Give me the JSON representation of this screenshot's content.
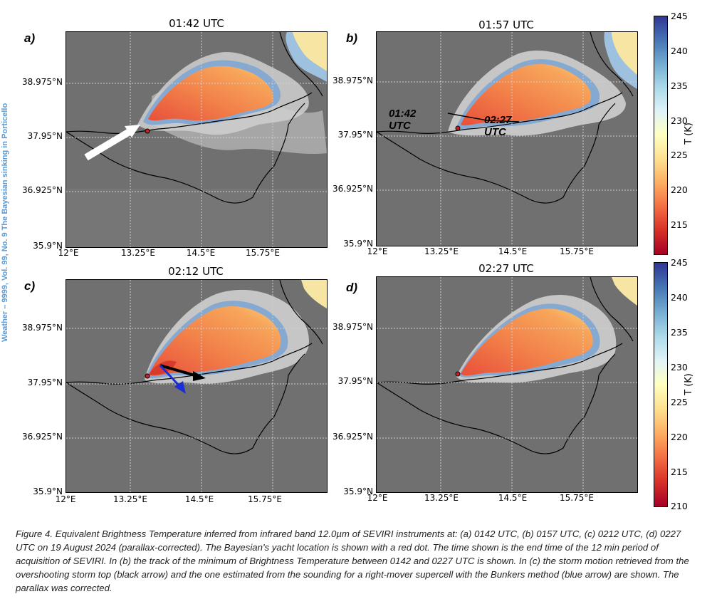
{
  "side_text": "Weather – 9999, Vol. 99, No. 9      The Bayesian sinking in Porticello",
  "panels": [
    {
      "letter": "a)",
      "title": "01:42 UTC"
    },
    {
      "letter": "b)",
      "title": "01:57 UTC"
    },
    {
      "letter": "c)",
      "title": "02:12 UTC"
    },
    {
      "letter": "d)",
      "title": "02:27 UTC"
    }
  ],
  "lat_ticks": [
    "38.975°N",
    "37.95°N",
    "36.925°N",
    "35.9°N"
  ],
  "lon_ticks": [
    "12°E",
    "13.25°E",
    "14.5°E",
    "15.75°E"
  ],
  "annotations": {
    "track_start": "01:42 UTC",
    "track_end": "02:27 UTC"
  },
  "colorbar": {
    "label": "T (K)",
    "top_ticks": [
      "245",
      "240",
      "235",
      "230",
      "225",
      "220",
      "215"
    ],
    "bottom_ticks": [
      "245",
      "240",
      "235",
      "230",
      "225",
      "220",
      "215",
      "210"
    ],
    "colors": [
      "#313695",
      "#4575b4",
      "#74add1",
      "#abd9e9",
      "#e0f3f8",
      "#ffffbf",
      "#fee090",
      "#fdae61",
      "#f46d43",
      "#d73027",
      "#a50026"
    ]
  },
  "caption": "Figure 4. Equivalent Brightness Temperature inferred from infrared band 12.0µm of SEVIRI instruments at: (a) 0142 UTC, (b) 0157 UTC, (c) 0212 UTC, (d) 0227 UTC on 19 August 2024 (parallax-corrected). The Bayesian's yacht location is shown with a red dot. The time shown is the end time of the 12 min period of acquisition of SEVIRI. In (b) the track of the minimum of Brightness Temperature between 0142 and 0227 UTC is shown. In (c) the storm motion retrieved from the overshooting storm top (black arrow) and the one estimated from the sounding for a right-mover supercell with the Bunkers method (blue arrow) are shown. The parallax was corrected."
}
